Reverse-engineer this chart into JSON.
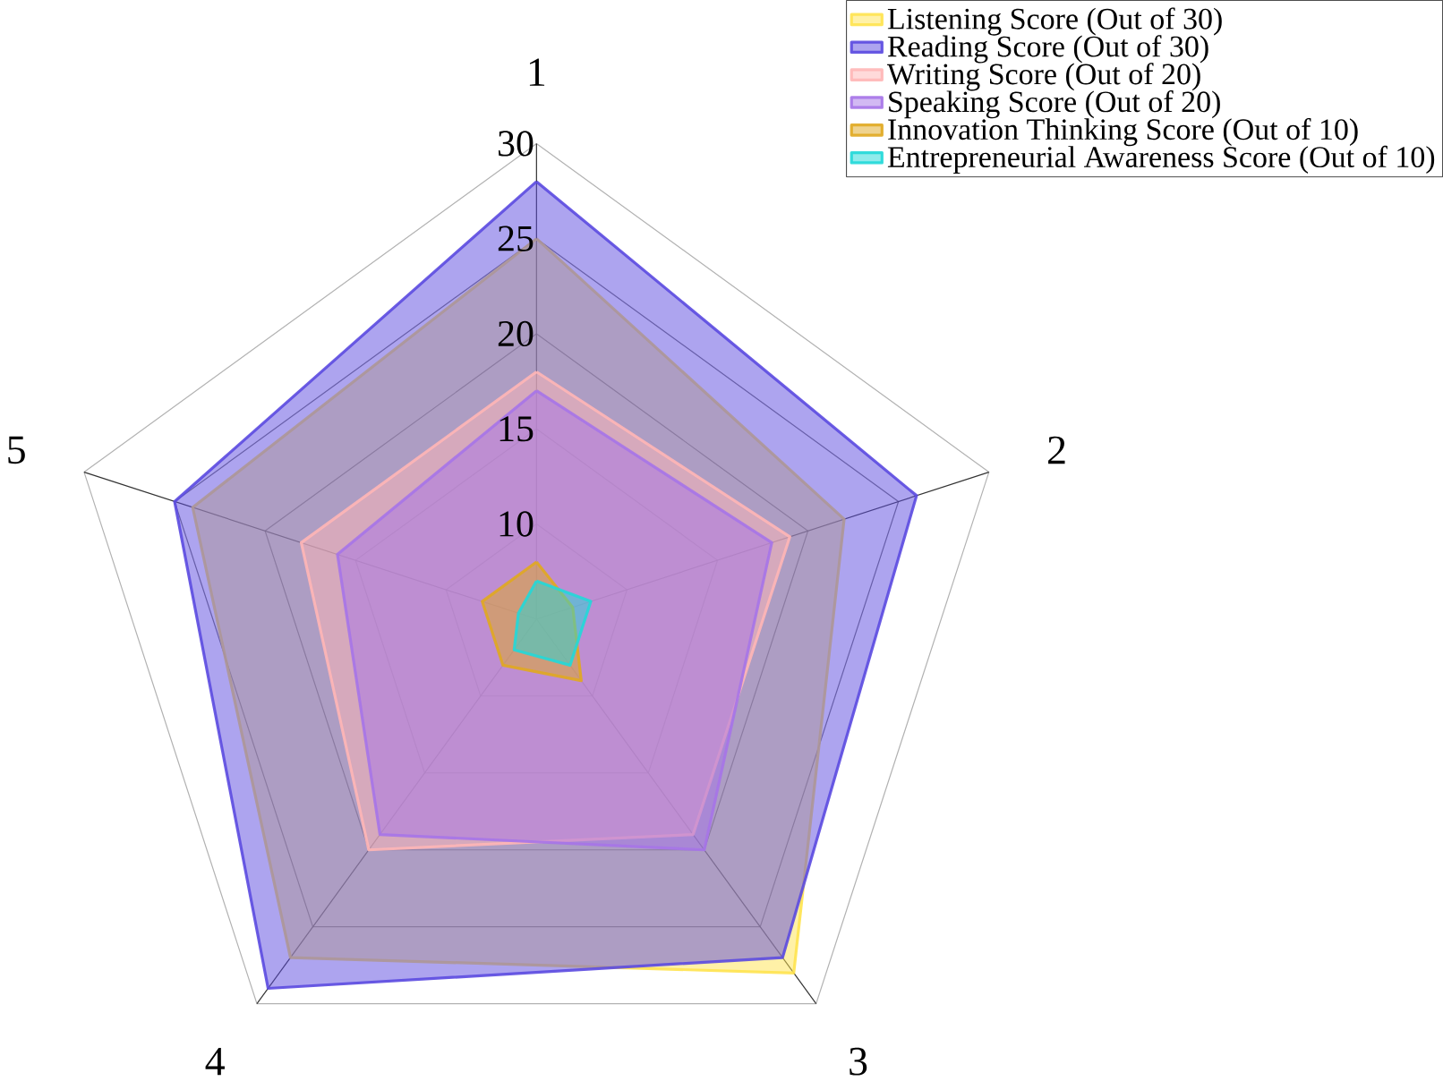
{
  "chart_data": {
    "type": "radar",
    "categories": [
      "1",
      "2",
      "3",
      "4",
      "5"
    ],
    "ylim": [
      5,
      30
    ],
    "yticks": [
      10,
      15,
      20,
      25,
      30
    ],
    "legend": "top right",
    "series": [
      {
        "name": "Listening Score (Out of 30)",
        "color": "#ffe34f",
        "values": [
          25,
          22,
          28,
          27,
          24
        ]
      },
      {
        "name": "Reading Score (Out of 30)",
        "color": "#5b4ae0",
        "values": [
          28,
          26,
          27,
          29,
          25
        ]
      },
      {
        "name": "Writing Score (Out of 20)",
        "color": "#ffb6b6",
        "values": [
          18,
          19,
          19,
          20,
          18
        ]
      },
      {
        "name": "Speaking Score (Out of 20)",
        "color": "#a674e8",
        "values": [
          17,
          18,
          20,
          19,
          16
        ]
      },
      {
        "name": "Innovation Thinking Score (Out of 10)",
        "color": "#e0a820",
        "values": [
          8,
          7,
          9,
          8,
          8
        ]
      },
      {
        "name": "Entrepreneurial Awareness Score (Out of 10)",
        "color": "#22d8d8",
        "values": [
          7,
          8,
          8,
          7,
          6
        ]
      }
    ]
  }
}
